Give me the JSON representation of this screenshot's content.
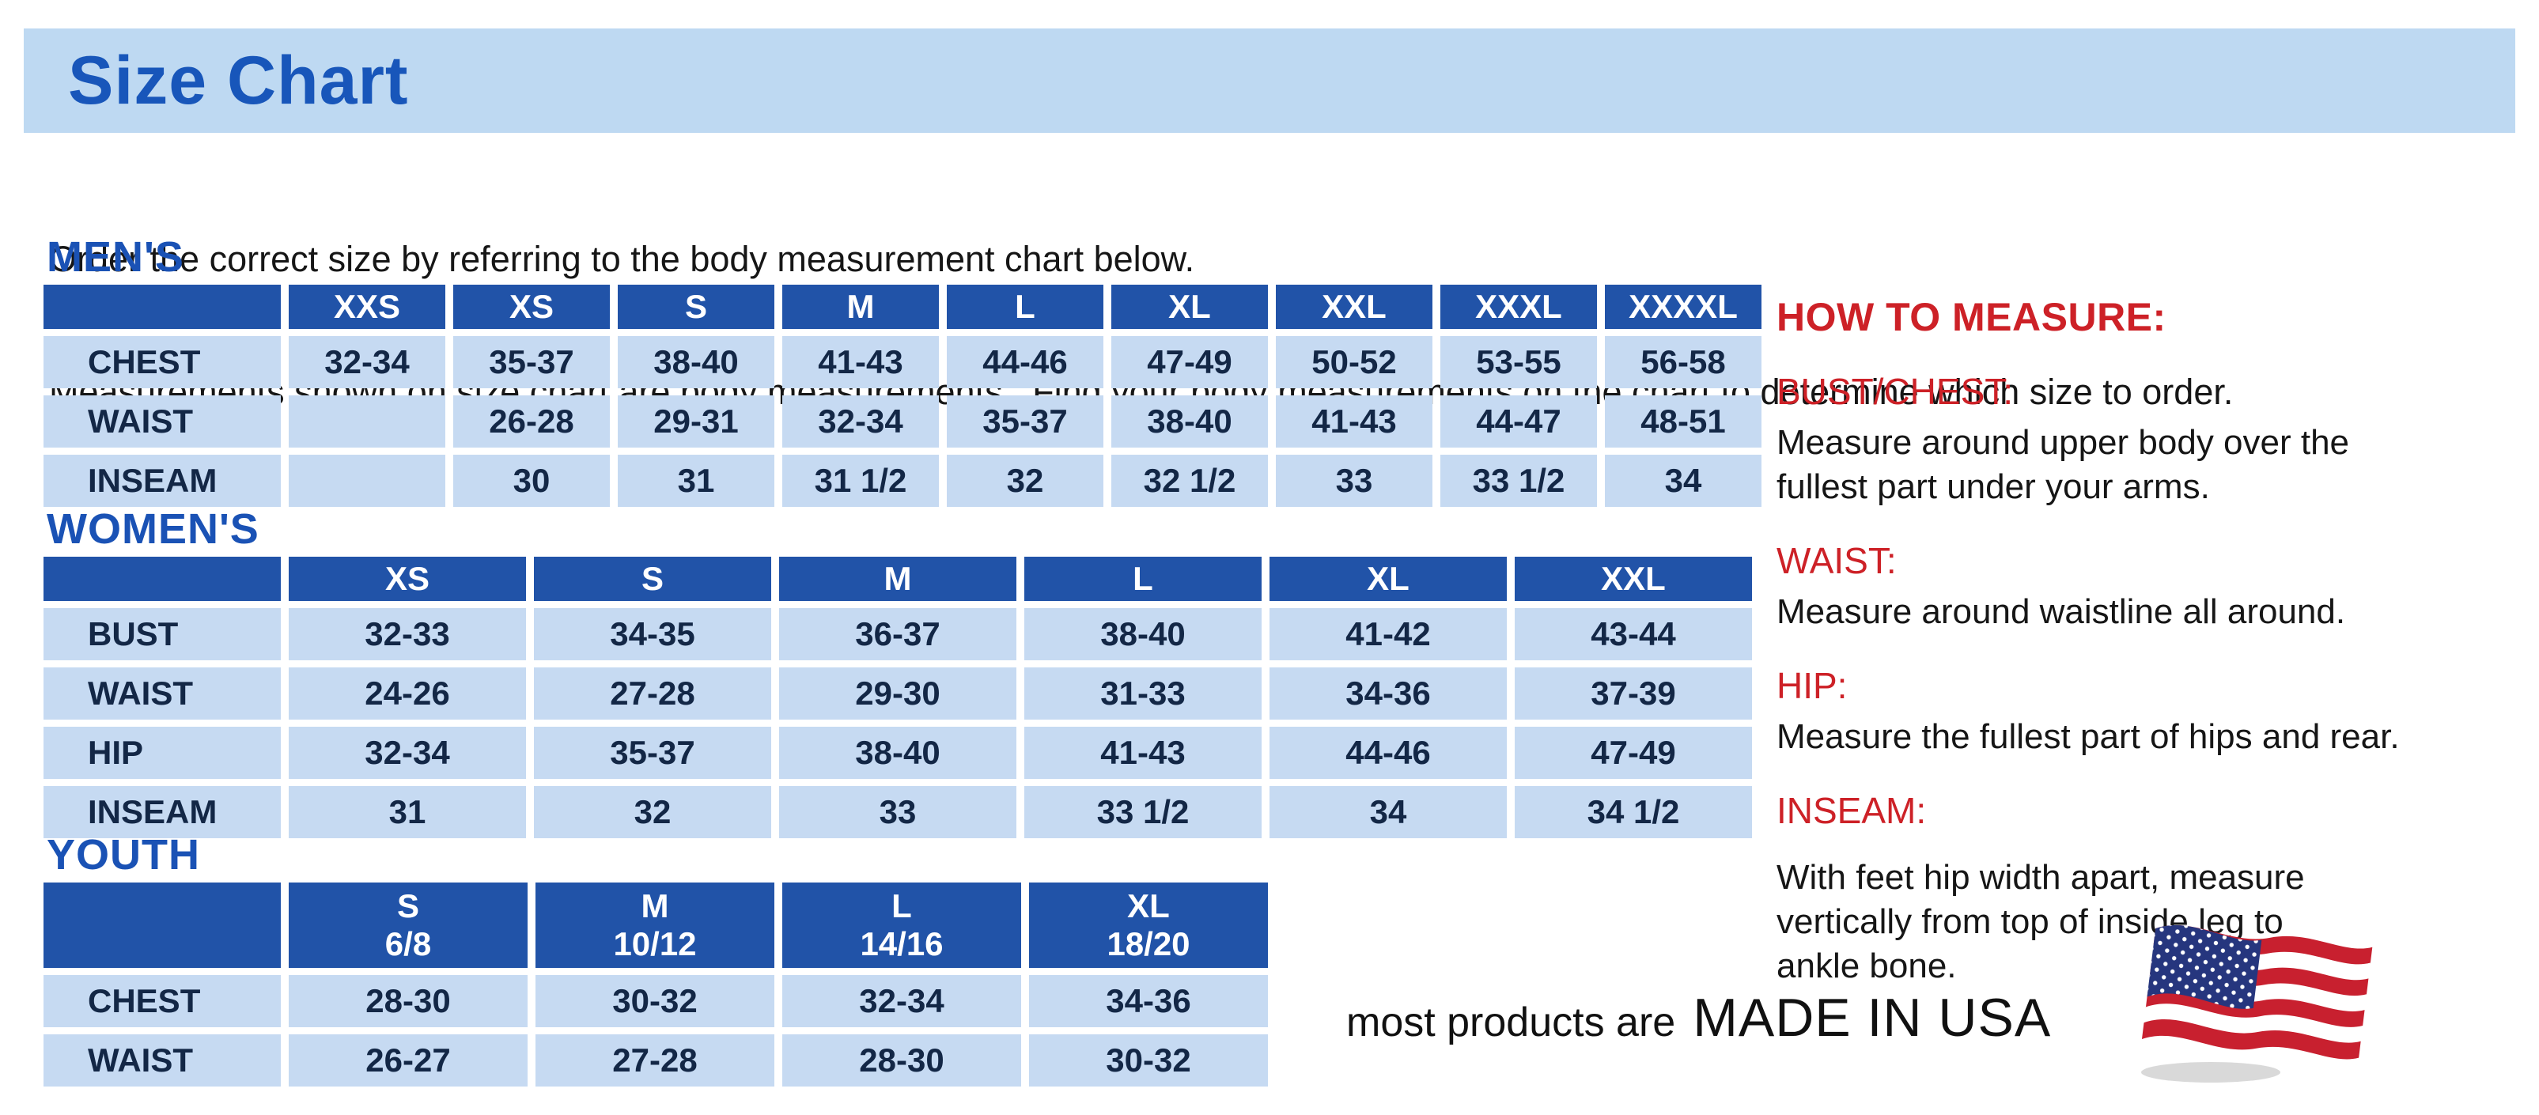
{
  "page_title": "Size Chart",
  "intro": {
    "line1": "Order the correct size by referring to the body measurement chart below.",
    "line2": "Measurements shown on size chart are body measurements.  Find your body measurements on the chart to determine which size to order."
  },
  "tables": [
    {
      "id": "mens",
      "heading": "MEN'S",
      "columns": [
        "XXS",
        "XS",
        "S",
        "M",
        "L",
        "XL",
        "XXL",
        "XXXL",
        "XXXXL"
      ],
      "rows": [
        {
          "label": "CHEST",
          "values": [
            "32-34",
            "35-37",
            "38-40",
            "41-43",
            "44-46",
            "47-49",
            "50-52",
            "53-55",
            "56-58"
          ]
        },
        {
          "label": "WAIST",
          "values": [
            "",
            "26-28",
            "29-31",
            "32-34",
            "35-37",
            "38-40",
            "41-43",
            "44-47",
            "48-51"
          ]
        },
        {
          "label": "INSEAM",
          "values": [
            "",
            "30",
            "31",
            "31 1/2",
            "32",
            "32 1/2",
            "33",
            "33 1/2",
            "34"
          ]
        }
      ]
    },
    {
      "id": "womens",
      "heading": "WOMEN'S",
      "columns": [
        "XS",
        "S",
        "M",
        "L",
        "XL",
        "XXL"
      ],
      "rows": [
        {
          "label": "BUST",
          "values": [
            "32-33",
            "34-35",
            "36-37",
            "38-40",
            "41-42",
            "43-44"
          ]
        },
        {
          "label": "WAIST",
          "values": [
            "24-26",
            "27-28",
            "29-30",
            "31-33",
            "34-36",
            "37-39"
          ]
        },
        {
          "label": "HIP",
          "values": [
            "32-34",
            "35-37",
            "38-40",
            "41-43",
            "44-46",
            "47-49"
          ]
        },
        {
          "label": "INSEAM",
          "values": [
            "31",
            "32",
            "33",
            "33 1/2",
            "34",
            "34 1/2"
          ]
        }
      ]
    },
    {
      "id": "youth",
      "heading": "YOUTH",
      "columns": [
        "S\n6/8",
        "M\n10/12",
        "L\n14/16",
        "XL\n18/20"
      ],
      "rows": [
        {
          "label": "CHEST",
          "values": [
            "28-30",
            "30-32",
            "32-34",
            "34-36"
          ]
        },
        {
          "label": "WAIST",
          "values": [
            "26-27",
            "27-28",
            "28-30",
            "30-32"
          ]
        }
      ]
    }
  ],
  "how_to_measure": {
    "heading": "HOW TO MEASURE:",
    "sections": [
      {
        "label": "BUST/CHEST:",
        "text": "Measure around upper body over the\nfullest part under your arms."
      },
      {
        "label": "WAIST:",
        "text": "Measure around waistline all around."
      },
      {
        "label": "HIP:",
        "text": "Measure the fullest part of hips and rear."
      },
      {
        "label": "INSEAM:",
        "text": "With feet hip width apart, measure\nvertically from top of inside leg to\nankle bone."
      }
    ]
  },
  "footer": {
    "prefix": "most products are",
    "main": "MADE IN USA",
    "flag_icon": "usa-flag-icon"
  },
  "colors": {
    "title_band_bg": "#bed9f2",
    "title_blue": "#1856ba",
    "section_heading_blue": "#1a52b5",
    "table_header_bg": "#2153a8",
    "table_cell_bg": "#c6daf2",
    "table_text": "#132746",
    "red_accent": "#cd2127",
    "body_text": "#161616",
    "flag_red": "#c8202f",
    "flag_blue": "#26367e"
  }
}
